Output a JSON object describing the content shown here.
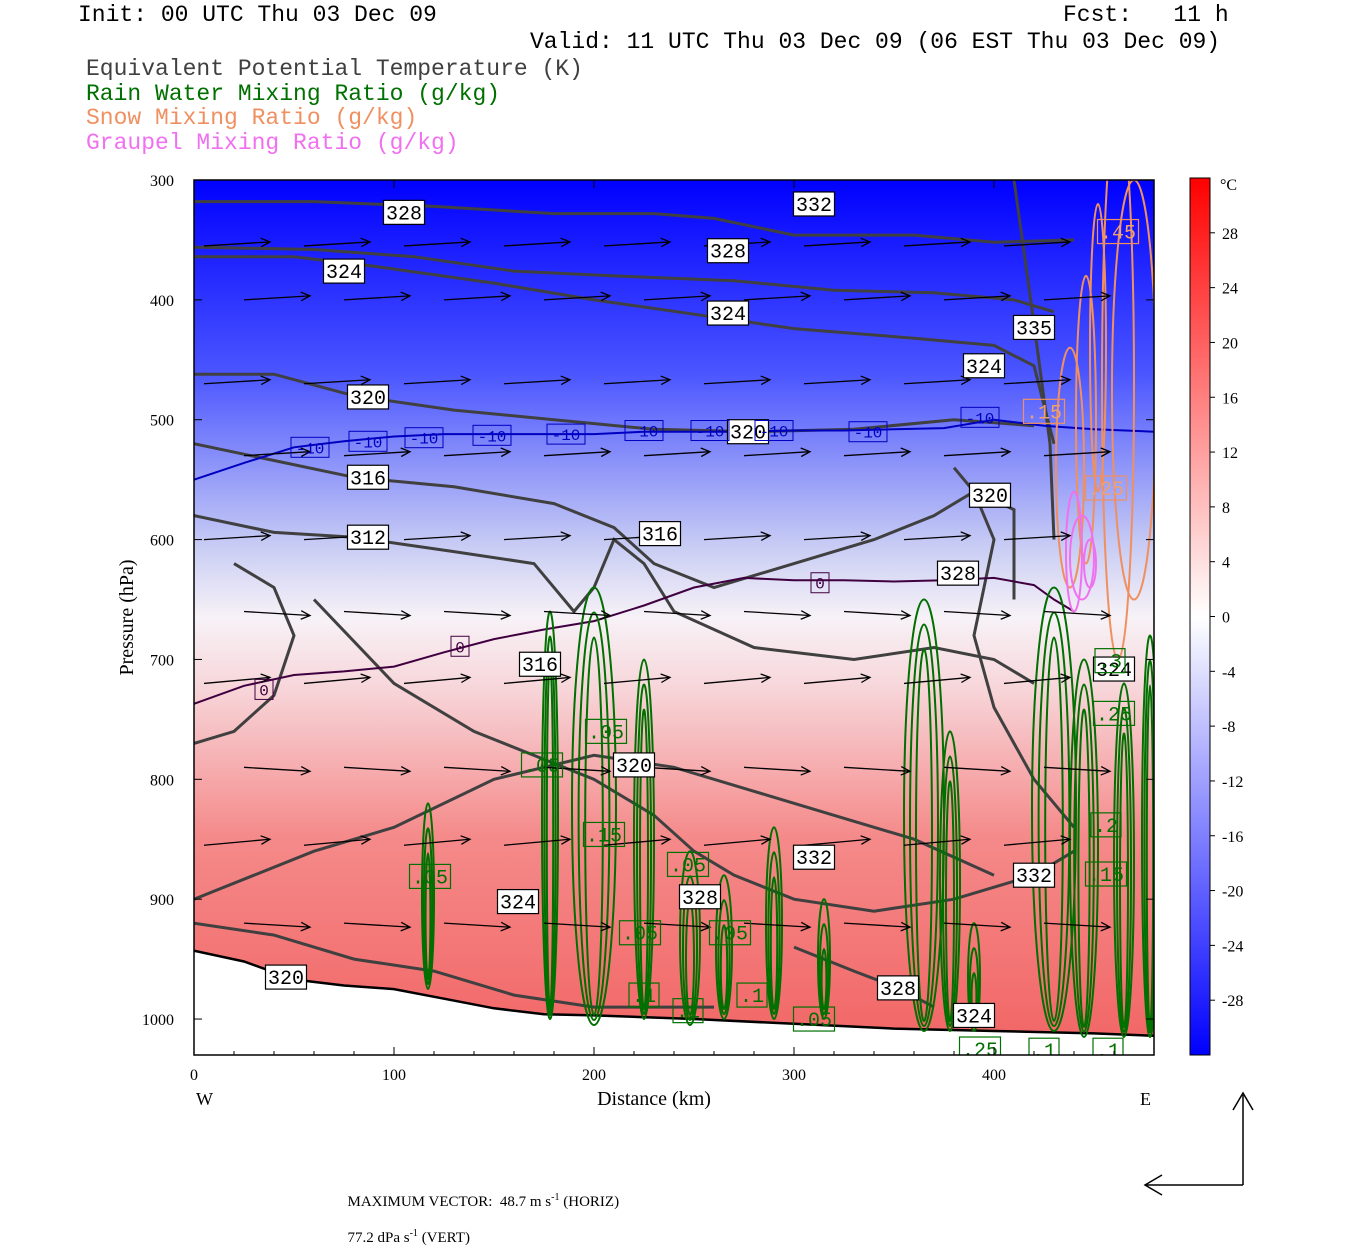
{
  "header": {
    "init": "Init: 00 UTC Thu 03 Dec 09",
    "fcst": "Fcst:   11 h",
    "valid": "Valid: 11 UTC Thu 03 Dec 09 (06 EST Thu 03 Dec 09)",
    "fields": [
      {
        "label": "Equivalent Potential Temperature (K)",
        "color": "#404040"
      },
      {
        "label": "Rain Water Mixing Ratio (g/kg)",
        "color": "#007000"
      },
      {
        "label": "Snow Mixing Ratio (g/kg)",
        "color": "#f09060"
      },
      {
        "label": "Graupel Mixing Ratio (g/kg)",
        "color": "#f070f0"
      }
    ]
  },
  "chart_data": {
    "type": "cross-section",
    "xlabel": "Distance (km)",
    "ylabel": "Pressure (hPa)",
    "x_ticks": [
      0,
      100,
      200,
      300,
      400
    ],
    "xlim": [
      0,
      480
    ],
    "y_ticks": [
      300,
      400,
      500,
      600,
      700,
      800,
      900,
      1000
    ],
    "ylim": [
      300,
      1030
    ],
    "x_end_labels": {
      "left": "W",
      "right": "E"
    },
    "colorbar": {
      "unit": "°C",
      "ticks": [
        28,
        24,
        20,
        16,
        12,
        8,
        4,
        0,
        -4,
        -8,
        -12,
        -16,
        -20,
        -24,
        -28
      ],
      "range": [
        -32,
        32
      ],
      "colors": {
        "cold": "#0000ff",
        "neutral": "#ffffff",
        "warm": "#ff0000"
      }
    },
    "temperature_isotherms": {
      "minus10": {
        "x": [
          0,
          25,
          50,
          75,
          100,
          125,
          150,
          175,
          200,
          225,
          250,
          275,
          300,
          325,
          350,
          375,
          400,
          425,
          450,
          480
        ],
        "p": [
          550,
          536,
          523,
          518,
          514,
          512,
          512,
          512,
          512,
          510,
          510,
          510,
          509,
          509,
          508,
          507,
          500,
          505,
          508,
          510
        ],
        "color": "#0000c0"
      },
      "zero": {
        "x": [
          0,
          25,
          50,
          75,
          100,
          125,
          150,
          175,
          200,
          225,
          250,
          275,
          300,
          325,
          350,
          375,
          400,
          420,
          430,
          440
        ],
        "p": [
          737,
          722,
          713,
          710,
          706,
          694,
          683,
          675,
          668,
          655,
          640,
          632,
          634,
          634,
          635,
          634,
          632,
          638,
          650,
          660
        ],
        "color": "#400040"
      }
    },
    "contour_labels": {
      "theta_e": [
        {
          "text": "328",
          "x": 105,
          "p": 327
        },
        {
          "text": "332",
          "x": 310,
          "p": 320
        },
        {
          "text": "324",
          "x": 75,
          "p": 376
        },
        {
          "text": "328",
          "x": 267,
          "p": 359
        },
        {
          "text": "324",
          "x": 267,
          "p": 411
        },
        {
          "text": "324",
          "x": 395,
          "p": 455
        },
        {
          "text": "335",
          "x": 420,
          "p": 423
        },
        {
          "text": "320",
          "x": 87,
          "p": 481
        },
        {
          "text": "320",
          "x": 277,
          "p": 510
        },
        {
          "text": "316",
          "x": 87,
          "p": 548
        },
        {
          "text": "320",
          "x": 398,
          "p": 563
        },
        {
          "text": "312",
          "x": 87,
          "p": 598
        },
        {
          "text": "316",
          "x": 233,
          "p": 595
        },
        {
          "text": "328",
          "x": 382,
          "p": 628
        },
        {
          "text": "316",
          "x": 173,
          "p": 704
        },
        {
          "text": "320",
          "x": 220,
          "p": 788
        },
        {
          "text": "332",
          "x": 310,
          "p": 865
        },
        {
          "text": "324",
          "x": 162,
          "p": 902
        },
        {
          "text": "328",
          "x": 253,
          "p": 898
        },
        {
          "text": "332",
          "x": 420,
          "p": 880
        },
        {
          "text": "320",
          "x": 46,
          "p": 965
        },
        {
          "text": "328",
          "x": 352,
          "p": 974
        },
        {
          "text": "324",
          "x": 460,
          "p": 708
        },
        {
          "text": "324",
          "x": 390,
          "p": 997
        }
      ],
      "rain": [
        {
          "text": ".05",
          "x": 206,
          "p": 760
        },
        {
          "text": ".05",
          "x": 174,
          "p": 788
        },
        {
          "text": ".15",
          "x": 205,
          "p": 846
        },
        {
          "text": ".05",
          "x": 247,
          "p": 871
        },
        {
          "text": ".05",
          "x": 118,
          "p": 881
        },
        {
          "text": ".05",
          "x": 268,
          "p": 928
        },
        {
          "text": ".05",
          "x": 223,
          "p": 928
        },
        {
          "text": ".1",
          "x": 225,
          "p": 980
        },
        {
          "text": ".1",
          "x": 247,
          "p": 993
        },
        {
          "text": ".1",
          "x": 279,
          "p": 980
        },
        {
          "text": ".05",
          "x": 310,
          "p": 1000
        },
        {
          "text": ".3",
          "x": 458,
          "p": 701
        },
        {
          "text": ".25",
          "x": 460,
          "p": 745
        },
        {
          "text": ".2",
          "x": 456,
          "p": 838
        },
        {
          "text": ".15",
          "x": 456,
          "p": 879
        },
        {
          "text": ".1",
          "x": 425,
          "p": 1026
        },
        {
          "text": ".1",
          "x": 457,
          "p": 1026
        },
        {
          "text": ".25",
          "x": 393,
          "p": 1025
        }
      ],
      "snow": [
        {
          "text": ".45",
          "x": 462,
          "p": 343
        },
        {
          "text": ".15",
          "x": 425,
          "p": 493
        },
        {
          "text": ".25",
          "x": 456,
          "p": 557
        }
      ],
      "temperature": [
        {
          "text": "-10",
          "x": 58,
          "p": 523
        },
        {
          "text": "-10",
          "x": 87,
          "p": 518
        },
        {
          "text": "-10",
          "x": 115,
          "p": 515
        },
        {
          "text": "-10",
          "x": 149,
          "p": 513
        },
        {
          "text": "-10",
          "x": 186,
          "p": 512
        },
        {
          "text": "-10",
          "x": 225,
          "p": 509
        },
        {
          "text": "-10",
          "x": 258,
          "p": 509
        },
        {
          "text": "-10",
          "x": 290,
          "p": 509
        },
        {
          "text": "-10",
          "x": 337,
          "p": 510
        },
        {
          "text": "-10",
          "x": 393,
          "p": 498
        },
        {
          "text": "0",
          "x": 35,
          "p": 725
        },
        {
          "text": "0",
          "x": 133,
          "p": 689
        },
        {
          "text": "0",
          "x": 313,
          "p": 636
        }
      ]
    },
    "surface_pressure": {
      "x": [
        0,
        25,
        50,
        75,
        100,
        125,
        150,
        175,
        200,
        250,
        300,
        350,
        400,
        450,
        480
      ],
      "p": [
        943,
        952,
        967,
        972,
        975,
        983,
        991,
        996,
        997,
        1000,
        1004,
        1008,
        1010,
        1012,
        1014
      ]
    },
    "max_vector": {
      "horizontal": "48.7 m s",
      "vertical": "77.2 dPa s"
    }
  },
  "footer": {
    "title": "MAXIMUM VECTOR:",
    "horiz_value": "48.7 m s",
    "horiz_exp": "-1",
    "horiz_tag": "(HORIZ)",
    "vert_value": "77.2 dPa s",
    "vert_exp": "-1",
    "vert_tag": "(VERT)"
  }
}
